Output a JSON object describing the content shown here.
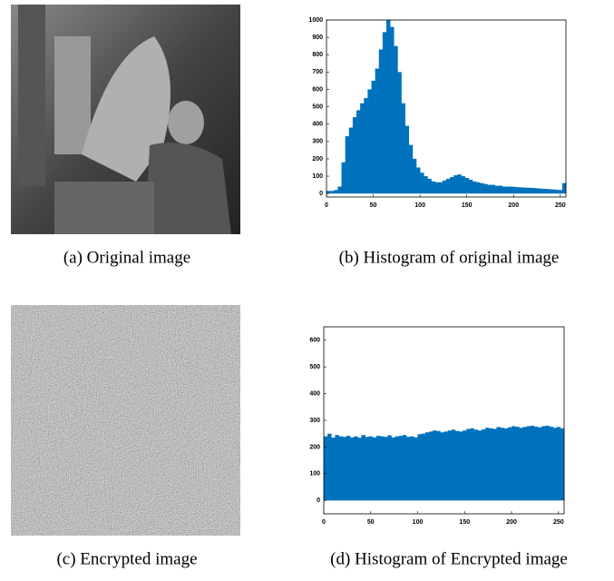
{
  "captions": [
    "(a) Original image",
    "(b) Histogram of original image",
    "(c) Encrypted image",
    "(d) Histogram of Encrypted image"
  ],
  "chart_data": [
    {
      "type": "bar",
      "color": "#0072bd",
      "x": [
        0,
        4,
        8,
        12,
        16,
        20,
        24,
        28,
        32,
        36,
        40,
        44,
        48,
        52,
        56,
        60,
        64,
        68,
        72,
        76,
        80,
        84,
        88,
        92,
        96,
        100,
        104,
        108,
        112,
        116,
        120,
        124,
        128,
        132,
        136,
        140,
        144,
        148,
        152,
        156,
        160,
        164,
        168,
        172,
        176,
        180,
        184,
        188,
        192,
        196,
        200,
        204,
        208,
        212,
        216,
        220,
        224,
        228,
        232,
        236,
        240,
        244,
        248,
        252
      ],
      "values": [
        15,
        15,
        20,
        40,
        180,
        330,
        380,
        440,
        480,
        520,
        550,
        600,
        650,
        720,
        830,
        930,
        1000,
        960,
        850,
        700,
        520,
        390,
        280,
        200,
        150,
        120,
        100,
        85,
        70,
        65,
        65,
        75,
        85,
        95,
        105,
        110,
        100,
        90,
        80,
        70,
        65,
        60,
        55,
        50,
        50,
        45,
        45,
        40,
        40,
        40,
        38,
        36,
        35,
        34,
        33,
        32,
        30,
        28,
        27,
        25,
        24,
        22,
        20,
        60
      ],
      "xlim": [
        0,
        256
      ],
      "ylim": [
        -20,
        1000
      ],
      "xticks": [
        0,
        50,
        100,
        150,
        200,
        250
      ],
      "yticks": [
        0,
        100,
        200,
        300,
        400,
        500,
        600,
        700,
        800,
        900,
        1000
      ]
    },
    {
      "type": "bar",
      "color": "#0072bd",
      "x": [
        0,
        4,
        8,
        12,
        16,
        20,
        24,
        28,
        32,
        36,
        40,
        44,
        48,
        52,
        56,
        60,
        64,
        68,
        72,
        76,
        80,
        84,
        88,
        92,
        96,
        100,
        104,
        108,
        112,
        116,
        120,
        124,
        128,
        132,
        136,
        140,
        144,
        148,
        152,
        156,
        160,
        164,
        168,
        172,
        176,
        180,
        184,
        188,
        192,
        196,
        200,
        204,
        208,
        212,
        216,
        220,
        224,
        228,
        232,
        236,
        240,
        244,
        248,
        252
      ],
      "values": [
        240,
        250,
        235,
        245,
        240,
        238,
        242,
        236,
        240,
        235,
        245,
        238,
        240,
        236,
        242,
        240,
        238,
        244,
        236,
        240,
        242,
        245,
        238,
        240,
        236,
        248,
        250,
        255,
        258,
        262,
        260,
        255,
        258,
        262,
        265,
        260,
        258,
        262,
        268,
        270,
        265,
        262,
        266,
        272,
        270,
        268,
        275,
        272,
        270,
        274,
        278,
        276,
        272,
        275,
        278,
        280,
        276,
        274,
        278,
        280,
        276,
        272,
        275,
        270
      ],
      "xlim": [
        0,
        256
      ],
      "ylim": [
        -50,
        650
      ],
      "xticks": [
        0,
        50,
        100,
        150,
        200,
        250
      ],
      "yticks": [
        0,
        100,
        200,
        300,
        400,
        500,
        600
      ]
    }
  ]
}
